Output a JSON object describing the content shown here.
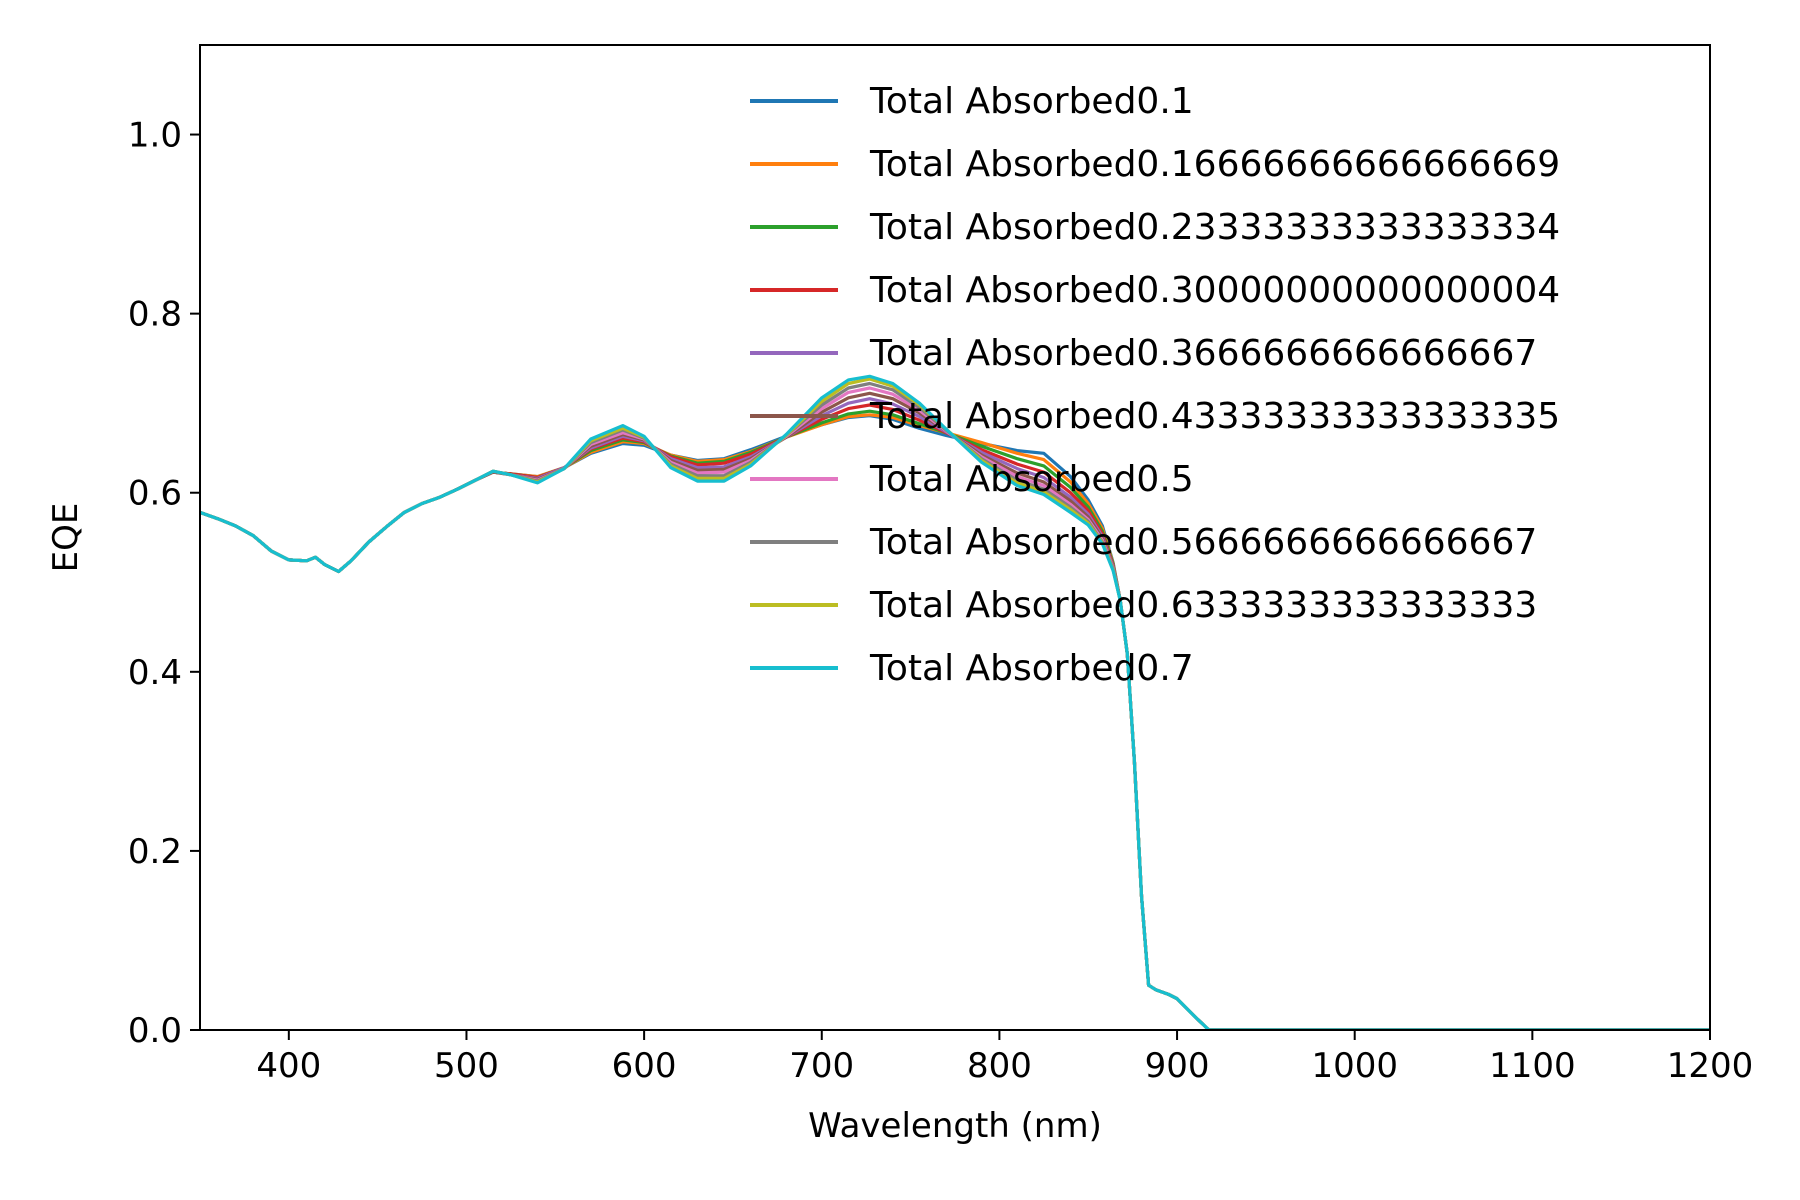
{
  "chart_data": {
    "type": "line",
    "title": "",
    "xlabel": "Wavelength (nm)",
    "ylabel": "EQE",
    "xlim": [
      350,
      1200
    ],
    "ylim": [
      0.0,
      1.1
    ],
    "xticks": [
      400,
      500,
      600,
      700,
      800,
      900,
      1000,
      1100,
      1200
    ],
    "xtick_labels": [
      "400",
      "500",
      "600",
      "700",
      "800",
      "900",
      "1000",
      "1100",
      "1200"
    ],
    "yticks": [
      0.0,
      0.2,
      0.4,
      0.6,
      0.8,
      1.0
    ],
    "ytick_labels": [
      "0.0",
      "0.2",
      "0.4",
      "0.6",
      "0.8",
      "1.0"
    ],
    "grid": false,
    "legend_position": "upper right",
    "common_x": [
      350,
      360,
      370,
      380,
      390,
      400,
      410,
      415,
      420,
      428,
      435,
      445,
      455,
      465,
      475,
      485,
      495
    ],
    "common_y": [
      0.578,
      0.571,
      0.563,
      0.552,
      0.535,
      0.525,
      0.524,
      0.528,
      0.52,
      0.512,
      0.524,
      0.545,
      0.562,
      0.578,
      0.588,
      0.595,
      0.604
    ],
    "tail_x": [
      868,
      872,
      876,
      880,
      884,
      888,
      895,
      900,
      905,
      910,
      918,
      930,
      1000,
      1100,
      1200
    ],
    "tail_y": [
      0.48,
      0.42,
      0.3,
      0.15,
      0.05,
      0.045,
      0.04,
      0.035,
      0.025,
      0.015,
      0.0,
      0.0,
      0.0,
      0.0,
      0.0
    ],
    "x": [
      505,
      515,
      525,
      540,
      555,
      570,
      588,
      600,
      615,
      630,
      645,
      660,
      680,
      700,
      715,
      727,
      740,
      755,
      770,
      790,
      810,
      825,
      840,
      850,
      858,
      864
    ],
    "series": [
      {
        "name": "Total Absorbed0.1",
        "color": "#1f77b4",
        "values": [
          0.614,
          0.623,
          0.621,
          0.618,
          0.628,
          0.644,
          0.655,
          0.653,
          0.642,
          0.636,
          0.638,
          0.648,
          0.663,
          0.676,
          0.684,
          0.686,
          0.682,
          0.672,
          0.664,
          0.655,
          0.647,
          0.644,
          0.618,
          0.592,
          0.563,
          0.522
        ]
      },
      {
        "name": "Total Absorbed0.16666666666666669",
        "color": "#ff7f0e",
        "values": [
          0.614,
          0.623,
          0.621,
          0.618,
          0.628,
          0.645,
          0.657,
          0.655,
          0.642,
          0.635,
          0.637,
          0.646,
          0.662,
          0.676,
          0.685,
          0.687,
          0.684,
          0.675,
          0.667,
          0.656,
          0.644,
          0.637,
          0.612,
          0.588,
          0.56,
          0.521
        ]
      },
      {
        "name": "Total Absorbed0.23333333333333334",
        "color": "#2ca02c",
        "values": [
          0.614,
          0.623,
          0.621,
          0.617,
          0.628,
          0.647,
          0.659,
          0.656,
          0.641,
          0.633,
          0.635,
          0.645,
          0.662,
          0.678,
          0.688,
          0.691,
          0.687,
          0.677,
          0.667,
          0.652,
          0.638,
          0.63,
          0.606,
          0.584,
          0.557,
          0.52
        ]
      },
      {
        "name": "Total Absorbed0.30000000000000004",
        "color": "#d62728",
        "values": [
          0.614,
          0.623,
          0.621,
          0.617,
          0.628,
          0.649,
          0.661,
          0.657,
          0.64,
          0.631,
          0.633,
          0.643,
          0.662,
          0.682,
          0.694,
          0.698,
          0.693,
          0.681,
          0.667,
          0.648,
          0.632,
          0.623,
          0.6,
          0.58,
          0.554,
          0.519
        ]
      },
      {
        "name": "Total Absorbed0.3666666666666667",
        "color": "#9467bd",
        "values": [
          0.614,
          0.623,
          0.62,
          0.616,
          0.628,
          0.65,
          0.663,
          0.658,
          0.638,
          0.628,
          0.629,
          0.64,
          0.662,
          0.686,
          0.7,
          0.705,
          0.699,
          0.685,
          0.668,
          0.645,
          0.627,
          0.617,
          0.595,
          0.576,
          0.551,
          0.518
        ]
      },
      {
        "name": "Total Absorbed0.43333333333333335",
        "color": "#8c564b",
        "values": [
          0.614,
          0.623,
          0.62,
          0.615,
          0.627,
          0.652,
          0.665,
          0.659,
          0.636,
          0.625,
          0.626,
          0.638,
          0.662,
          0.69,
          0.706,
          0.711,
          0.705,
          0.689,
          0.669,
          0.642,
          0.622,
          0.612,
          0.591,
          0.573,
          0.549,
          0.517
        ]
      },
      {
        "name": "Total Absorbed0.5",
        "color": "#e377c2",
        "values": [
          0.614,
          0.624,
          0.62,
          0.614,
          0.627,
          0.654,
          0.667,
          0.66,
          0.634,
          0.622,
          0.623,
          0.636,
          0.663,
          0.694,
          0.712,
          0.717,
          0.71,
          0.692,
          0.669,
          0.64,
          0.618,
          0.608,
          0.587,
          0.57,
          0.547,
          0.516
        ]
      },
      {
        "name": "Total Absorbed0.5666666666666667",
        "color": "#7f7f7f",
        "values": [
          0.614,
          0.624,
          0.62,
          0.613,
          0.627,
          0.656,
          0.67,
          0.661,
          0.632,
          0.619,
          0.619,
          0.634,
          0.664,
          0.698,
          0.717,
          0.722,
          0.715,
          0.695,
          0.67,
          0.638,
          0.614,
          0.604,
          0.584,
          0.568,
          0.545,
          0.515
        ]
      },
      {
        "name": "Total Absorbed0.6333333333333333",
        "color": "#bcbd22",
        "values": [
          0.614,
          0.624,
          0.62,
          0.612,
          0.627,
          0.658,
          0.672,
          0.662,
          0.63,
          0.616,
          0.616,
          0.632,
          0.664,
          0.702,
          0.722,
          0.727,
          0.719,
          0.698,
          0.671,
          0.636,
          0.611,
          0.601,
          0.581,
          0.566,
          0.544,
          0.514
        ]
      },
      {
        "name": "Total Absorbed0.7",
        "color": "#17becf",
        "values": [
          0.614,
          0.624,
          0.62,
          0.611,
          0.627,
          0.66,
          0.675,
          0.663,
          0.628,
          0.613,
          0.613,
          0.63,
          0.665,
          0.706,
          0.726,
          0.73,
          0.722,
          0.7,
          0.671,
          0.634,
          0.608,
          0.598,
          0.578,
          0.564,
          0.543,
          0.513
        ]
      }
    ]
  }
}
